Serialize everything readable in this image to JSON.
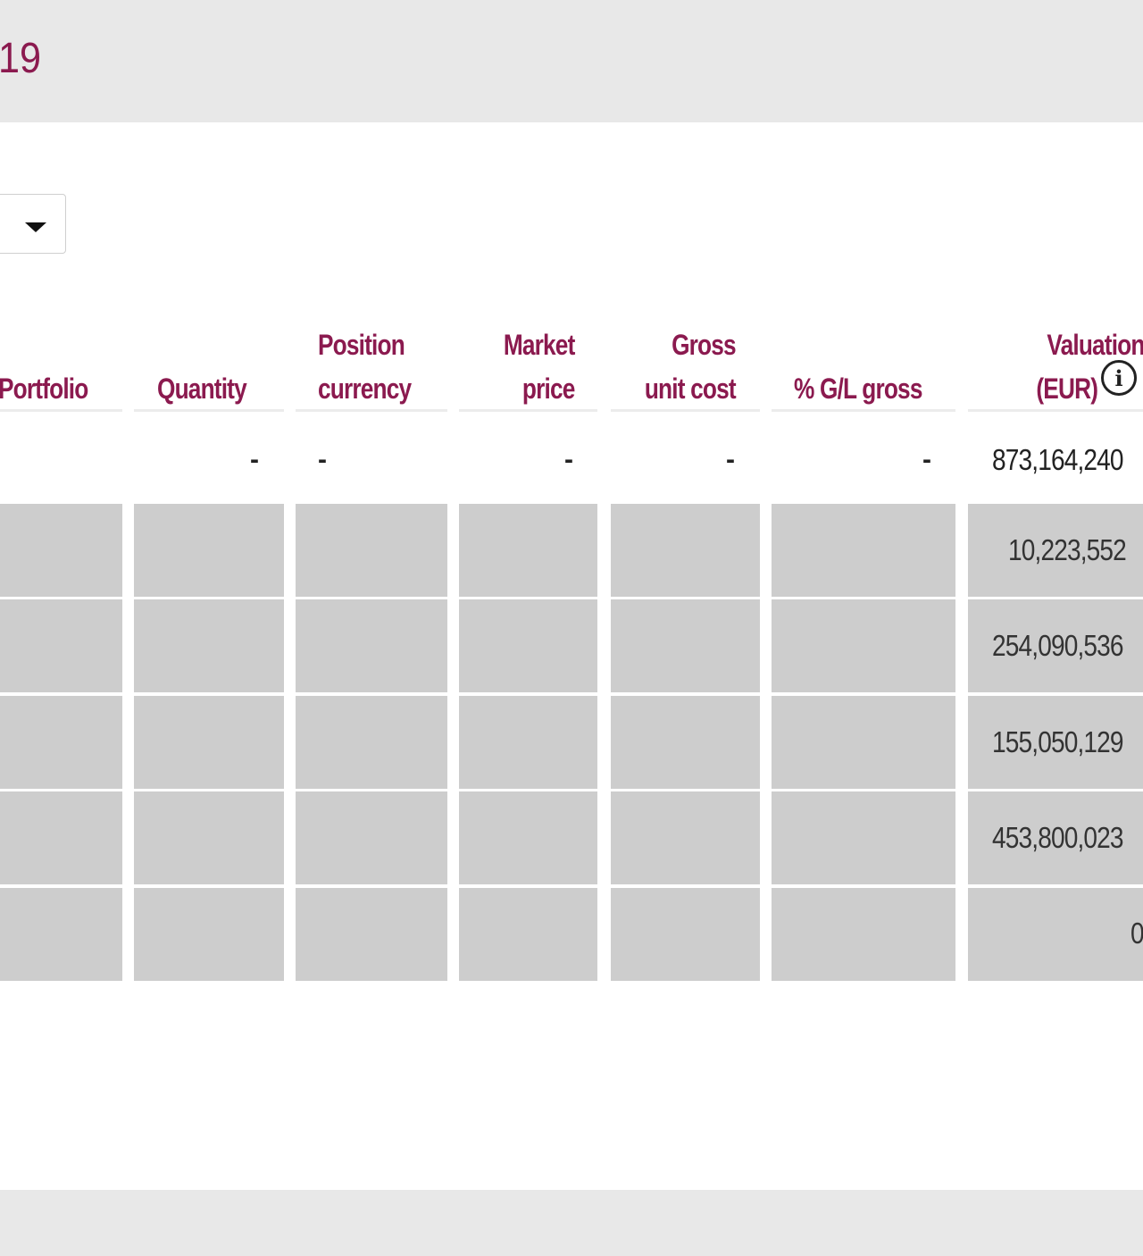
{
  "header": {
    "title_fragment": "19"
  },
  "table": {
    "columns": [
      {
        "id": "portfolio",
        "lines": [
          "Portfolio"
        ]
      },
      {
        "id": "quantity",
        "lines": [
          "Quantity"
        ]
      },
      {
        "id": "position_currency",
        "lines": [
          "Position",
          "currency"
        ]
      },
      {
        "id": "market_price",
        "lines": [
          "Market",
          "price"
        ]
      },
      {
        "id": "gross_unit_cost",
        "lines": [
          "Gross",
          "unit cost"
        ]
      },
      {
        "id": "gl_gross",
        "lines": [
          "% G/L gross"
        ]
      },
      {
        "id": "valuation",
        "lines": [
          "Valuation",
          "(EUR)"
        ]
      }
    ],
    "summary_row": {
      "quantity": "-",
      "position_currency": "-",
      "market_price": "-",
      "gross_unit_cost": "-",
      "gl_gross": "-",
      "valuation": "873,164,240"
    },
    "rows": [
      {
        "valuation": "10,223,552"
      },
      {
        "valuation": "254,090,536"
      },
      {
        "valuation": "155,050,129"
      },
      {
        "valuation": "453,800,023"
      },
      {
        "valuation": "0"
      }
    ]
  },
  "icons": {
    "dropdown": "caret-down-icon",
    "info": "info-icon"
  },
  "colors": {
    "accent": "#8b1a4f",
    "masked_cell": "#cdcdcd",
    "band": "#e8e8e8"
  }
}
